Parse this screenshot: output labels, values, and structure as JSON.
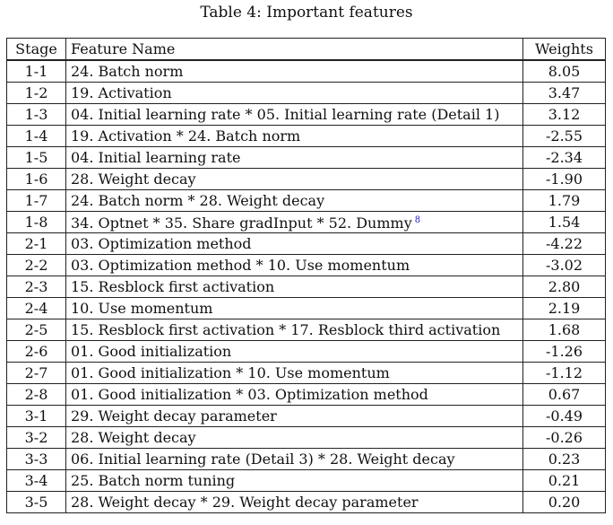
{
  "caption": "Table 4: Important features",
  "headers": {
    "stage": "Stage",
    "feature": "Feature Name",
    "weights": "Weights"
  },
  "rows": [
    {
      "stage": "1-1",
      "feature": "24. Batch norm",
      "weight": "8.05"
    },
    {
      "stage": "1-2",
      "feature": "19. Activation",
      "weight": "3.47"
    },
    {
      "stage": "1-3",
      "feature": "04. Initial learning rate * 05. Initial learning rate (Detail 1)",
      "weight": "3.12"
    },
    {
      "stage": "1-4",
      "feature": "19. Activation * 24. Batch norm",
      "weight": "-2.55"
    },
    {
      "stage": "1-5",
      "feature": "04. Initial learning rate",
      "weight": "-2.34"
    },
    {
      "stage": "1-6",
      "feature": "28. Weight decay",
      "weight": "-1.90"
    },
    {
      "stage": "1-7",
      "feature": "24. Batch norm * 28. Weight decay",
      "weight": "1.79"
    },
    {
      "stage": "1-8",
      "feature": "34. Optnet * 35. Share gradInput * 52. Dummy",
      "footnote": "8",
      "weight": "1.54"
    },
    {
      "stage": "2-1",
      "feature": "03. Optimization method",
      "weight": "-4.22"
    },
    {
      "stage": "2-2",
      "feature": "03. Optimization method * 10. Use momentum",
      "weight": "-3.02"
    },
    {
      "stage": "2-3",
      "feature": "15. Resblock first activation",
      "weight": "2.80"
    },
    {
      "stage": "2-4",
      "feature": "10. Use momentum",
      "weight": "2.19"
    },
    {
      "stage": "2-5",
      "feature": "15. Resblock first activation * 17. Resblock third activation",
      "weight": "1.68"
    },
    {
      "stage": "2-6",
      "feature": "01. Good initialization",
      "weight": "-1.26"
    },
    {
      "stage": "2-7",
      "feature": "01. Good initialization * 10. Use momentum",
      "weight": "-1.12"
    },
    {
      "stage": "2-8",
      "feature": "01. Good initialization * 03. Optimization method",
      "weight": "0.67"
    },
    {
      "stage": "3-1",
      "feature": "29. Weight decay parameter",
      "weight": "-0.49"
    },
    {
      "stage": "3-2",
      "feature": "28. Weight decay",
      "weight": "-0.26"
    },
    {
      "stage": "3-3",
      "feature": "06. Initial learning rate (Detail 3) * 28. Weight decay",
      "weight": "0.23"
    },
    {
      "stage": "3-4",
      "feature": "25. Batch norm tuning",
      "weight": "0.21"
    },
    {
      "stage": "3-5",
      "feature": "28. Weight decay * 29. Weight decay parameter",
      "weight": "0.20"
    }
  ]
}
